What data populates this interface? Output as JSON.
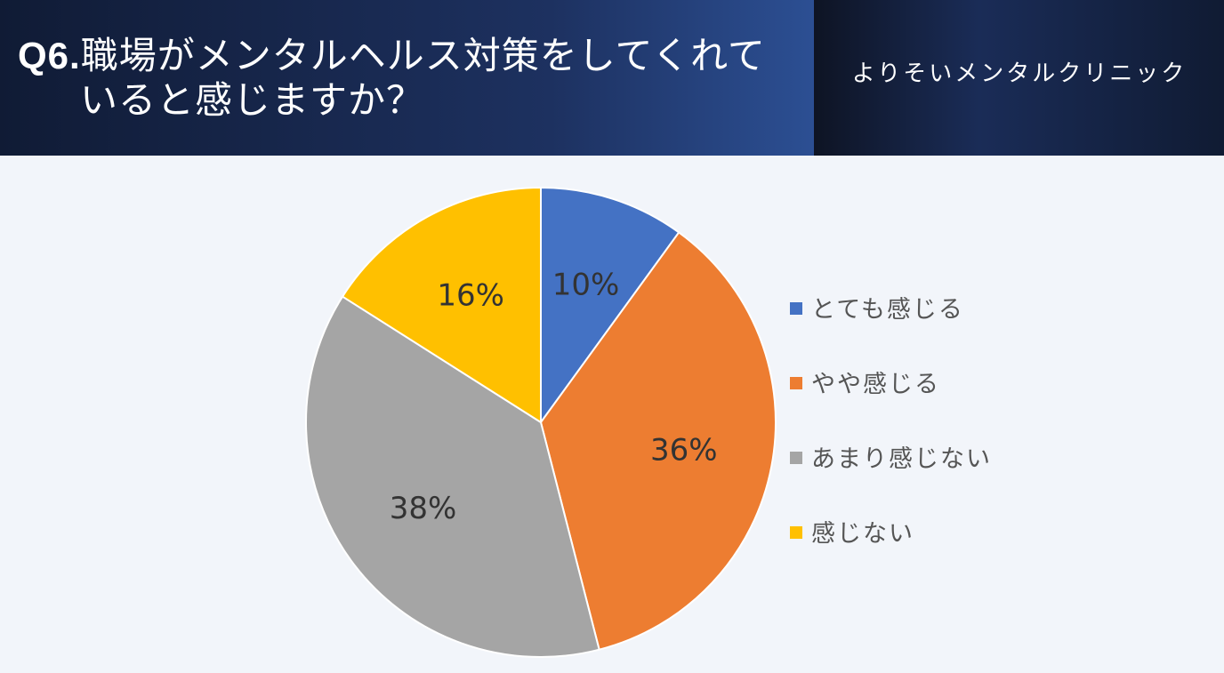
{
  "header": {
    "question_number": "Q6.",
    "question_line1": "職場がメンタルヘルス対策をしてくれて",
    "question_line2": "いると感じますか？",
    "clinic_name": "よりそいメンタルクリニック"
  },
  "chart_data": {
    "type": "pie",
    "categories": [
      "とても感じる",
      "やや感じる",
      "あまり感じない",
      "感じない"
    ],
    "values": [
      10,
      36,
      38,
      16
    ],
    "labels": [
      "10%",
      "36%",
      "38%",
      "16%"
    ],
    "colors": [
      "#4472c4",
      "#ed7d31",
      "#a5a5a5",
      "#ffc000"
    ],
    "start_angle": "12 o'clock, clockwise",
    "legend_position": "right"
  }
}
